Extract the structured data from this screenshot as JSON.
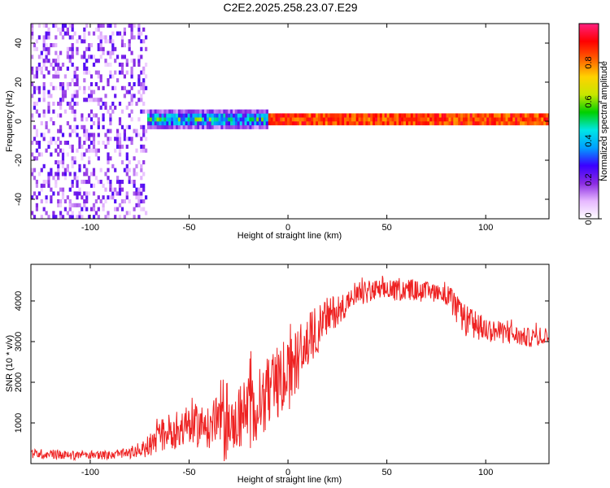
{
  "figure_title": "C2E2.2025.258.23.07.E29",
  "chart_data": [
    {
      "type": "heatmap",
      "title": "C2E2.2025.258.23.07.E29",
      "xlabel": "Height of straight line (km)",
      "ylabel": "Frequency (Hz)",
      "xlim": [
        -130,
        132
      ],
      "ylim": [
        -50,
        50
      ],
      "xticks": [
        -100,
        -50,
        0,
        50,
        100
      ],
      "yticks": [
        -40,
        -20,
        0,
        20,
        40
      ],
      "colorbar": {
        "label": "Normalized spectral amplitude",
        "range": [
          0.0,
          1.0
        ],
        "ticks": [
          0.0,
          0.2,
          0.4,
          0.6,
          0.8
        ],
        "colormap": [
          "#ffffff",
          "#e6b8ff",
          "#8a2be2",
          "#3a00ff",
          "#00a0ff",
          "#00e6e6",
          "#00d000",
          "#c8e600",
          "#ffd200",
          "#ff6000",
          "#ff0000",
          "#ff2080"
        ]
      },
      "description_regions": [
        {
          "x_range": [
            -130,
            -72
          ],
          "freq_spread_hz": 50,
          "amplitude": 0.15,
          "pattern": "scattered noise"
        },
        {
          "x_range": [
            -72,
            -10
          ],
          "freq_spread_hz": 6,
          "amplitude": 0.45,
          "pattern": "band narrowing"
        },
        {
          "x_range": [
            -10,
            132
          ],
          "freq_spread_hz": 2,
          "amplitude": 0.9,
          "pattern": "narrow line at 0 Hz"
        }
      ]
    },
    {
      "type": "line",
      "title": "",
      "xlabel": "Height of straight line (km)",
      "ylabel": "SNR (10 * v/v)",
      "xlim": [
        -130,
        132
      ],
      "ylim": [
        0,
        4900
      ],
      "xticks": [
        -100,
        -50,
        0,
        50,
        100
      ],
      "yticks": [
        1000,
        2000,
        3000,
        4000
      ],
      "series": [
        {
          "name": "SNR",
          "color": "#ee2222",
          "x": [
            -130,
            -120,
            -110,
            -100,
            -90,
            -80,
            -75,
            -70,
            -65,
            -60,
            -55,
            -50,
            -45,
            -40,
            -35,
            -32,
            -30,
            -27,
            -25,
            -22,
            -20,
            -18,
            -15,
            -10,
            -5,
            0,
            5,
            10,
            15,
            20,
            25,
            30,
            35,
            40,
            45,
            50,
            55,
            60,
            65,
            70,
            75,
            80,
            85,
            90,
            95,
            100,
            105,
            110,
            115,
            120,
            125,
            132
          ],
          "y": [
            250,
            230,
            200,
            220,
            210,
            250,
            300,
            450,
            650,
            800,
            850,
            900,
            950,
            850,
            1100,
            1300,
            1000,
            900,
            1250,
            1100,
            1400,
            1300,
            1500,
            1700,
            1900,
            2100,
            2600,
            3000,
            3300,
            3600,
            3800,
            3950,
            4100,
            4200,
            4250,
            4250,
            4250,
            4300,
            4250,
            4200,
            4250,
            4200,
            3800,
            3500,
            3400,
            3300,
            3250,
            3200,
            3150,
            3100,
            3100,
            3150
          ],
          "noise_amplitude": [
            120,
            120,
            110,
            110,
            110,
            130,
            150,
            300,
            400,
            450,
            500,
            550,
            550,
            500,
            650,
            1400,
            700,
            600,
            900,
            700,
            1200,
            900,
            900,
            900,
            900,
            850,
            800,
            700,
            600,
            500,
            400,
            300,
            280,
            280,
            280,
            260,
            260,
            260,
            260,
            260,
            260,
            300,
            350,
            400,
            350,
            300,
            280,
            260,
            250,
            240,
            240,
            240
          ]
        }
      ],
      "grid": false
    }
  ]
}
